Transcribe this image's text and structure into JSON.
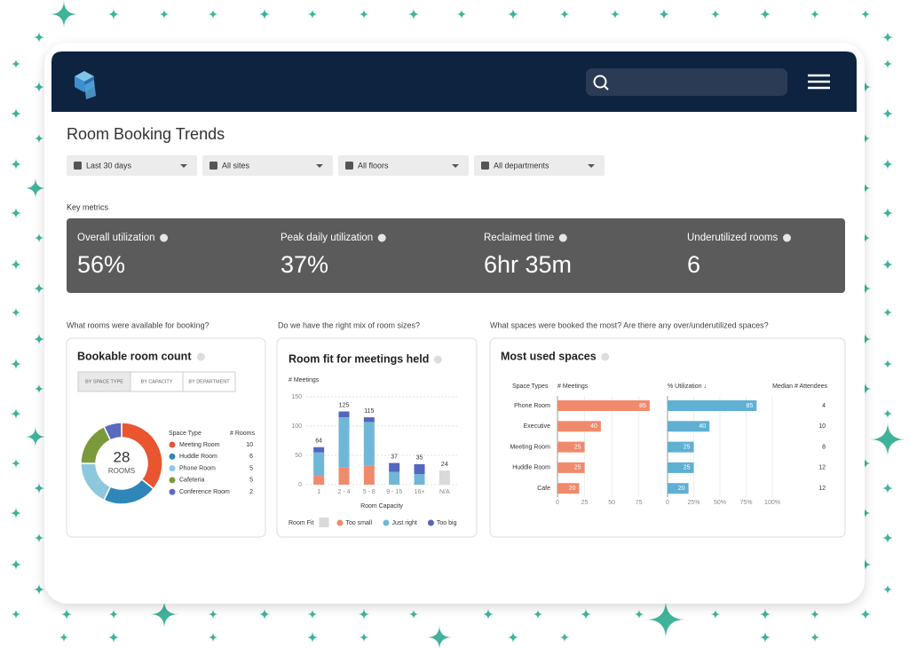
{
  "page_title": "Room Booking Trends",
  "filters": [
    "Last 30 days",
    "All sites",
    "All floors",
    "All departments"
  ],
  "key_metrics": {
    "title": "Key metrics",
    "items": [
      {
        "label": "Overall utilization",
        "value": "56%"
      },
      {
        "label": "Peak daily utilization",
        "value": "37%"
      },
      {
        "label": "Reclaimed time",
        "value": "6hr 35m"
      },
      {
        "label": "Underutilized rooms",
        "value": "6"
      }
    ]
  },
  "questions": [
    "What rooms were available for booking?",
    "Do we have the right mix of room sizes?",
    "What spaces were booked the most? Are there any over/underutilized spaces?"
  ],
  "chart_data": [
    {
      "type": "donut",
      "title": "Bookable room count",
      "tabs": [
        "BY SPACE TYPE",
        "BY CAPACITY",
        "BY DEPARTMENT"
      ],
      "total": 28,
      "center_label": "ROOMS",
      "legend_headers": [
        "Space Type",
        "# Rooms"
      ],
      "categories": [
        "Meeting Room",
        "Huddle Room",
        "Phone Room",
        "Cafeteria",
        "Conference Room"
      ],
      "values": [
        10,
        6,
        5,
        5,
        2
      ],
      "colors": [
        "#e8552f",
        "#2f86b9",
        "#8ec8df",
        "#7b9a3b",
        "#5b69bf"
      ]
    },
    {
      "type": "stacked_bar",
      "title": "Room fit for meetings held",
      "ylabel": "# Meetings",
      "xlabel": "Room Capacity",
      "legend_title": "Room Fit",
      "categories": [
        "1",
        "2 - 4",
        "5 - 8",
        "9 - 15",
        "16+",
        "N/A"
      ],
      "series": [
        {
          "name": "Too small",
          "color": "#f08a6c",
          "values": [
            15,
            29,
            33,
            null,
            null,
            null
          ]
        },
        {
          "name": "Just right",
          "color": "#6fb7d6",
          "values": [
            40,
            86,
            74,
            22,
            18,
            null
          ]
        },
        {
          "name": "Too big",
          "color": "#5566c0",
          "values": [
            9,
            10,
            8,
            15,
            17,
            null
          ]
        },
        {
          "color": "#d9d9d9",
          "values": [
            null,
            null,
            null,
            null,
            null,
            24
          ]
        }
      ],
      "totals": [
        64,
        125,
        115,
        37,
        35,
        24
      ],
      "ylim": [
        0,
        150
      ],
      "yticks": [
        0,
        50,
        100,
        150
      ],
      "grid": true
    },
    {
      "type": "hbar_panels",
      "title": "Most used spaces",
      "category_header": "Space Types",
      "categories": [
        "Phone Room",
        "Executive",
        "Meeting Room",
        "Huddle Room",
        "Cafe"
      ],
      "panels": [
        {
          "name": "# Meetings",
          "color": "#f08a6c",
          "values": [
            85,
            40,
            25,
            25,
            20
          ],
          "xlim": [
            0,
            90
          ],
          "xticks": [
            0,
            25,
            50,
            75
          ]
        },
        {
          "name": "% Utilization ↓",
          "color": "#5fb0d3",
          "values": [
            85,
            40,
            25,
            25,
            20
          ],
          "xlim": [
            0,
            100
          ],
          "xticks": [
            0,
            {
              "value": 25,
              "label": "25%"
            },
            {
              "value": 50,
              "label": "50%"
            },
            {
              "value": 75,
              "label": "75%"
            },
            {
              "value": 100,
              "label": "100%"
            }
          ]
        }
      ],
      "attendees": {
        "name": "Median # Attendees",
        "values": [
          4,
          10,
          8,
          12,
          12
        ]
      }
    }
  ]
}
